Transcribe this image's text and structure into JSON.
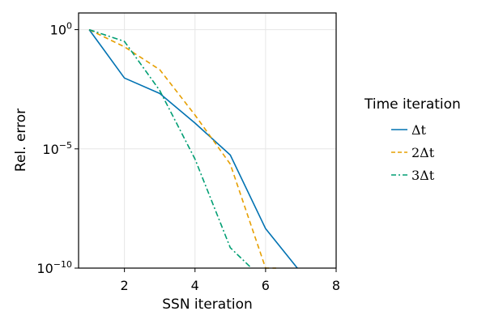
{
  "chart_data": {
    "type": "line",
    "xlabel": "SSN iteration",
    "ylabel": "Rel. error",
    "xlim": [
      0.7,
      8
    ],
    "ylim": [
      1e-10,
      5
    ],
    "yscale": "log",
    "grid": true,
    "x_ticks": [
      2,
      4,
      6,
      8
    ],
    "y_ticks": [
      {
        "value": 1,
        "base": "10",
        "exp": "0"
      },
      {
        "value": 1e-05,
        "base": "10",
        "exp": "−5"
      },
      {
        "value": 1e-10,
        "base": "10",
        "exp": "−10"
      }
    ],
    "legend": {
      "title": "Time iteration",
      "position": "right"
    },
    "series": [
      {
        "name": "Δt",
        "color": "#0072b2",
        "dash": "solid",
        "x": [
          1,
          2,
          3,
          4,
          5,
          6,
          6.9
        ],
        "y": [
          1,
          0.0094,
          0.0021,
          0.00012,
          5.5e-06,
          4.5e-09,
          1e-10
        ]
      },
      {
        "name": "2Δt",
        "color": "#e69f00",
        "dash": "dashed",
        "x": [
          1,
          2,
          3,
          4,
          5,
          6,
          6.3
        ],
        "y": [
          1,
          0.19,
          0.021,
          0.00026,
          2.3e-06,
          1e-10,
          1e-10
        ]
      },
      {
        "name": "3Δt",
        "color": "#009e73",
        "dash": "dashdot",
        "x": [
          1,
          2,
          3,
          4,
          5,
          5.6
        ],
        "y": [
          1,
          0.32,
          0.0028,
          3.7e-06,
          7.2e-10,
          1e-10
        ]
      }
    ]
  }
}
